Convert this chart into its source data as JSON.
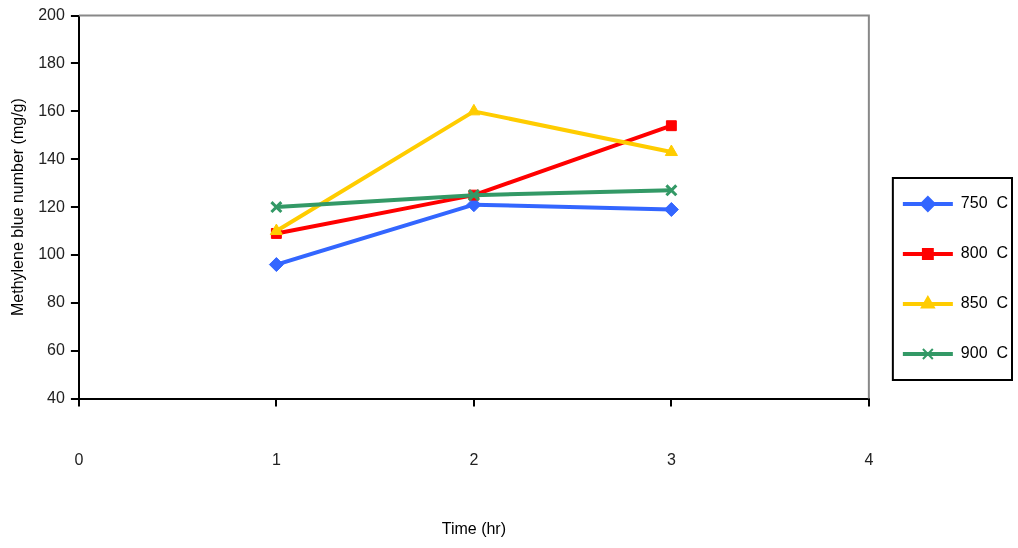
{
  "chart_data": {
    "type": "line",
    "xlabel": "Time (hr)",
    "ylabel": "Methylene blue number (mg/g)",
    "x": [
      1,
      2,
      3
    ],
    "xlim": [
      0,
      4
    ],
    "xticks": [
      0,
      1,
      2,
      3,
      4
    ],
    "ylim": [
      40,
      200
    ],
    "yticks": [
      40,
      60,
      80,
      100,
      120,
      140,
      160,
      180,
      200
    ],
    "grid": false,
    "legend": "right",
    "line_style": "solid",
    "series": [
      {
        "name": "750  C",
        "color": "#3366ff",
        "marker": "diamond",
        "values": [
          96,
          121,
          119
        ]
      },
      {
        "name": "800  C",
        "color": "#ff0000",
        "marker": "square",
        "values": [
          109,
          125,
          154
        ]
      },
      {
        "name": "850  C",
        "color": "#ffcc00",
        "marker": "triangle",
        "values": [
          110,
          160,
          143
        ]
      },
      {
        "name": "900  C",
        "color": "#339966",
        "marker": "cross",
        "values": [
          120,
          125,
          127
        ]
      }
    ]
  }
}
